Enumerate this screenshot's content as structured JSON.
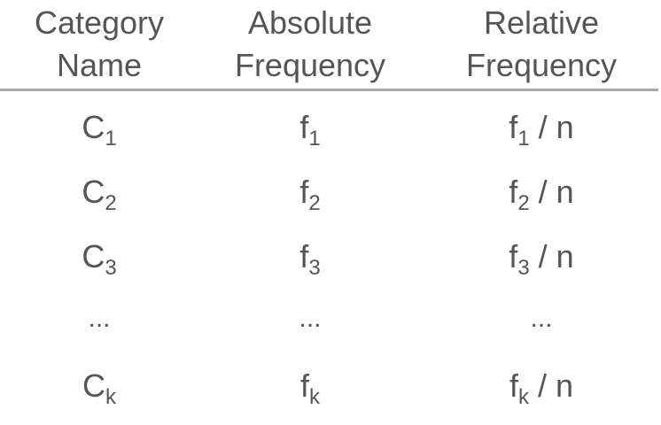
{
  "header": {
    "col1": {
      "line1": "Category",
      "line2": "Name"
    },
    "col2": {
      "line1": "Absolute",
      "line2": "Frequency"
    },
    "col3": {
      "line1": "Relative",
      "line2": "Frequency"
    }
  },
  "rows": [
    {
      "category": {
        "base": "C",
        "sub": "1"
      },
      "absolute": {
        "base": "f",
        "sub": "1"
      },
      "relative": {
        "base": "f",
        "sub": "1",
        "suffix": " / n"
      }
    },
    {
      "category": {
        "base": "C",
        "sub": "2"
      },
      "absolute": {
        "base": "f",
        "sub": "2"
      },
      "relative": {
        "base": "f",
        "sub": "2",
        "suffix": " / n"
      }
    },
    {
      "category": {
        "base": "C",
        "sub": "3"
      },
      "absolute": {
        "base": "f",
        "sub": "3"
      },
      "relative": {
        "base": "f",
        "sub": "3",
        "suffix": " / n"
      }
    },
    {
      "category": {
        "text": "..."
      },
      "absolute": {
        "text": "..."
      },
      "relative": {
        "text": "..."
      }
    },
    {
      "category": {
        "base": "C",
        "sub": "k"
      },
      "absolute": {
        "base": "f",
        "sub": "k"
      },
      "relative": {
        "base": "f",
        "sub": "k",
        "suffix": " / n"
      }
    }
  ]
}
